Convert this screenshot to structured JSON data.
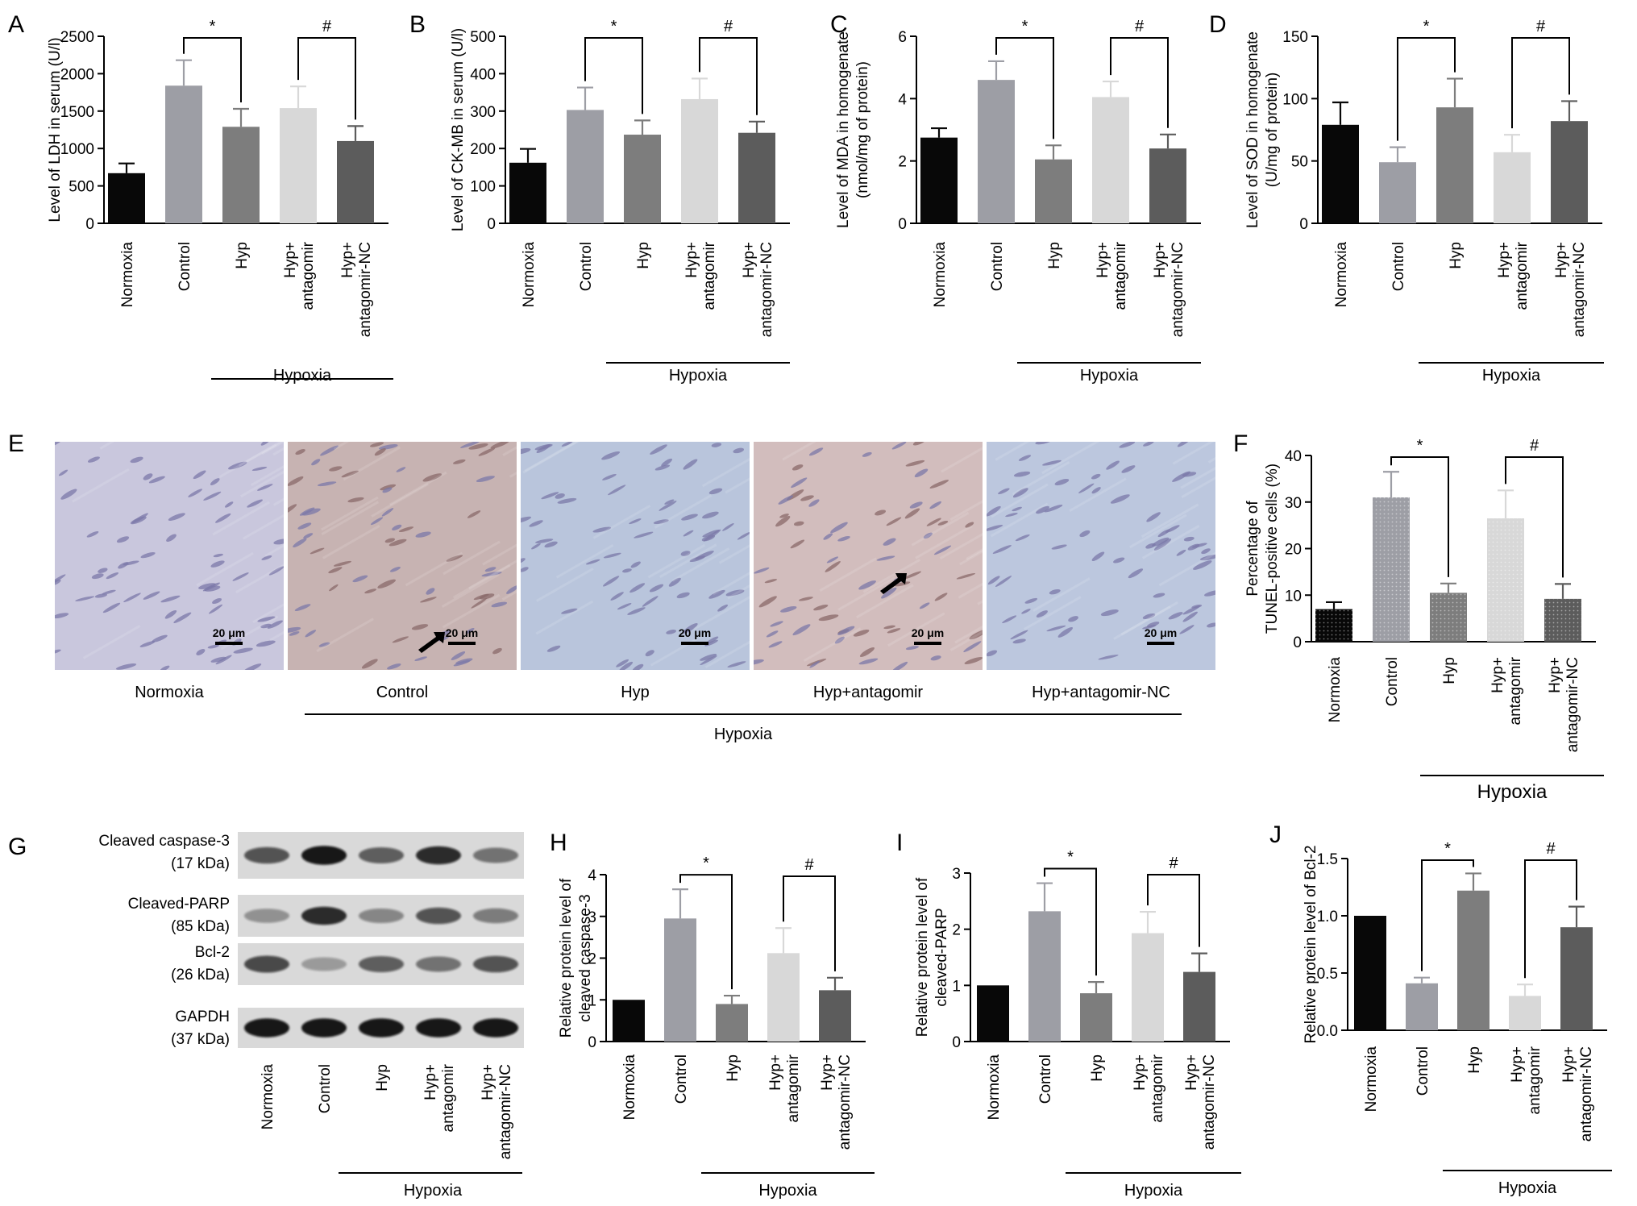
{
  "colors": {
    "Normoxia": "#080808",
    "Control": "#9d9ea5",
    "Hyp": "#7d7d7d",
    "Hyp+ antagomir": "#d8d8d8",
    "Hyp+ antagomir-NC": "#5c5c5c"
  },
  "chart_data": [
    {
      "panel": "A",
      "type": "bar",
      "categories": [
        "Normoxia",
        "Control",
        "Hyp",
        "Hyp+ antagomir",
        "Hyp+ antagomir-NC"
      ],
      "values": [
        670,
        1840,
        1290,
        1540,
        1100
      ],
      "errors": [
        130,
        340,
        240,
        290,
        200
      ],
      "ylabel": "Level of LDH in serum (U/l)",
      "yticks": [
        0,
        500,
        1000,
        1500,
        2000,
        2500
      ],
      "ylim": [
        0,
        2500
      ],
      "group_label": "Hypoxia",
      "sig": [
        "*",
        "#"
      ]
    },
    {
      "panel": "B",
      "type": "bar",
      "categories": [
        "Normoxia",
        "Control",
        "Hyp",
        "Hyp+ antagomir",
        "Hyp+ antagomir-NC"
      ],
      "values": [
        162,
        303,
        237,
        332,
        242
      ],
      "errors": [
        37,
        60,
        38,
        55,
        30
      ],
      "ylabel": "Level of CK-MB in serum (U/l)",
      "yticks": [
        0,
        100,
        200,
        300,
        400,
        500
      ],
      "ylim": [
        0,
        500
      ],
      "group_label": "Hypoxia",
      "sig": [
        "*",
        "#"
      ]
    },
    {
      "panel": "C",
      "type": "bar",
      "categories": [
        "Normoxia",
        "Control",
        "Hyp",
        "Hyp+ antagomir",
        "Hyp+ antagomir-NC"
      ],
      "values": [
        2.75,
        4.6,
        2.05,
        4.05,
        2.4
      ],
      "errors": [
        0.3,
        0.6,
        0.45,
        0.5,
        0.45
      ],
      "ylabel": [
        "Level of MDA in homogenate",
        "(nmol/mg of protein)"
      ],
      "yticks": [
        0,
        2,
        4,
        6
      ],
      "ylim": [
        0,
        6
      ],
      "group_label": "Hypoxia",
      "sig": [
        "*",
        "#"
      ]
    },
    {
      "panel": "D",
      "type": "bar",
      "categories": [
        "Normoxia",
        "Control",
        "Hyp",
        "Hyp+ antagomir",
        "Hyp+ antagomir-NC"
      ],
      "values": [
        79,
        49,
        93,
        57,
        82
      ],
      "errors": [
        18,
        12,
        23,
        14,
        16
      ],
      "ylabel": [
        "Level of SOD in homogenate",
        "(U/mg of protein)"
      ],
      "yticks": [
        0,
        50,
        100,
        150
      ],
      "ylim": [
        0,
        150
      ],
      "group_label": "Hypoxia",
      "sig": [
        "*",
        "#"
      ]
    },
    {
      "panel": "F",
      "type": "bar",
      "categories": [
        "Normoxia",
        "Control",
        "Hyp",
        "Hyp+ antagomir",
        "Hyp+ antagomir-NC"
      ],
      "values": [
        7,
        31,
        10.5,
        26.5,
        9.2
      ],
      "errors": [
        1.5,
        5.5,
        2,
        6,
        3.2
      ],
      "ylabel": [
        "Percentage of",
        "TUNEL-positive cells (%)"
      ],
      "yticks": [
        0,
        10,
        20,
        30,
        40
      ],
      "ylim": [
        0,
        40
      ],
      "group_label": "Hypoxia",
      "sig": [
        "*",
        "#"
      ]
    },
    {
      "panel": "H",
      "type": "bar",
      "categories": [
        "Normoxia",
        "Control",
        "Hyp",
        "Hyp+ antagomir",
        "Hyp+ antagomir-NC"
      ],
      "values": [
        1.0,
        2.95,
        0.9,
        2.12,
        1.23
      ],
      "errors": [
        0,
        0.7,
        0.2,
        0.6,
        0.3
      ],
      "ylabel": [
        "Relative protein level of",
        "cleaved caspase-3"
      ],
      "yticks": [
        0,
        1,
        2,
        3,
        4
      ],
      "ylim": [
        0,
        4
      ],
      "group_label": "Hypoxia",
      "sig": [
        "*",
        "#"
      ]
    },
    {
      "panel": "I",
      "type": "bar",
      "categories": [
        "Normoxia",
        "Control",
        "Hyp",
        "Hyp+ antagomir",
        "Hyp+ antagomir-NC"
      ],
      "values": [
        1.0,
        2.32,
        0.86,
        1.93,
        1.24
      ],
      "errors": [
        0,
        0.5,
        0.2,
        0.38,
        0.33
      ],
      "ylabel": [
        "Relative protein level of",
        "cleaved-PARP"
      ],
      "yticks": [
        0,
        1,
        2,
        3
      ],
      "ylim": [
        0,
        3
      ],
      "group_label": "Hypoxia",
      "sig": [
        "*",
        "#"
      ]
    },
    {
      "panel": "J",
      "type": "bar",
      "categories": [
        "Normoxia",
        "Control",
        "Hyp",
        "Hyp+ antagomir",
        "Hyp+ antagomir-NC"
      ],
      "values": [
        1.0,
        0.41,
        1.22,
        0.3,
        0.9
      ],
      "errors": [
        0,
        0.05,
        0.15,
        0.1,
        0.18
      ],
      "ylabel": "Relative protein level of Bcl-2",
      "yticks": [
        "0.0",
        "0.5",
        "1.0",
        "1.5"
      ],
      "ylim": [
        0,
        1.5
      ],
      "group_label": "Hypoxia",
      "sig": [
        "*",
        "#"
      ]
    }
  ],
  "panel_e": {
    "panel": "E",
    "images": [
      {
        "label": "Normoxia",
        "scale": "20 μm",
        "tint": "#c9c7dd"
      },
      {
        "label": "Control",
        "scale": "20 μm",
        "tint": "#c7b3b2"
      },
      {
        "label": "Hyp",
        "scale": "20 μm",
        "tint": "#b9c5dc"
      },
      {
        "label": "Hyp+antagomir",
        "scale": "20 μm",
        "tint": "#d2bdbd"
      },
      {
        "label": "Hyp+antagomir-NC",
        "scale": "20 μm",
        "tint": "#bcc7de"
      }
    ],
    "group_label": "Hypoxia"
  },
  "panel_g": {
    "panel": "G",
    "rows": [
      {
        "name": "Cleaved caspase-3",
        "kda": "(17 kDa)"
      },
      {
        "name": "Cleaved-PARP",
        "kda": "(85 kDa)"
      },
      {
        "name": "Bcl-2",
        "kda": "(26 kDa)"
      },
      {
        "name": "GAPDH",
        "kda": "(37 kDa)"
      }
    ],
    "lanes": [
      "Normoxia",
      "Control",
      "Hyp",
      "Hyp+ antagomir",
      "Hyp+ antagomir-NC"
    ],
    "group_label": "Hypoxia"
  }
}
